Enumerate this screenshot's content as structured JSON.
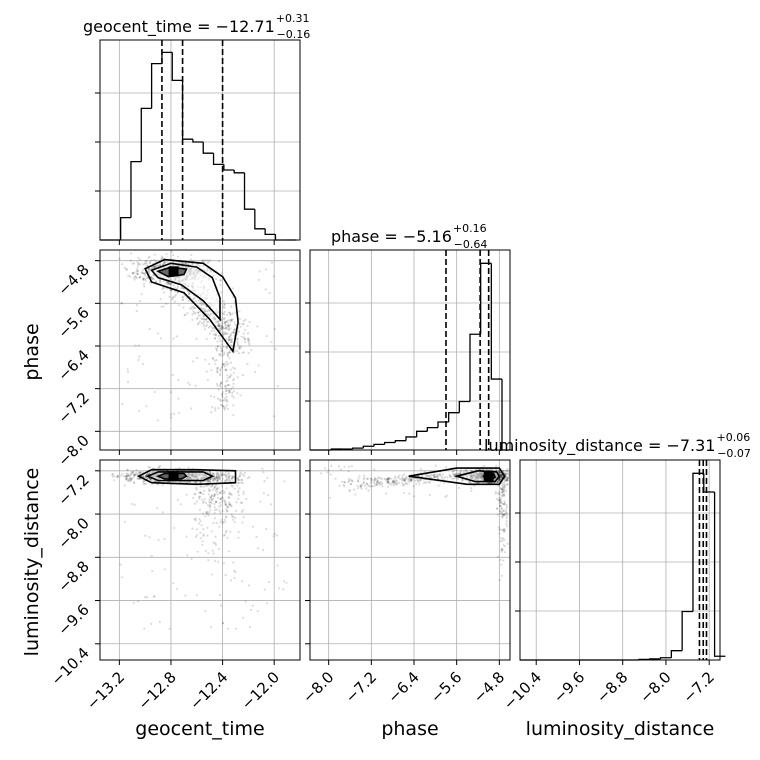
{
  "chart_data": {
    "type": "corner",
    "parameters": [
      "geocent_time",
      "phase",
      "luminosity_distance"
    ],
    "titles": [
      {
        "param": "geocent_time",
        "label": "geocent_time",
        "median": "−12.71",
        "plus": "+0.31",
        "minus": "−0.16"
      },
      {
        "param": "phase",
        "label": "phase",
        "median": "−5.16",
        "plus": "+0.16",
        "minus": "−0.64"
      },
      {
        "param": "luminosity_distance",
        "label": "luminosity_distance",
        "median": "−7.31",
        "plus": "+0.06",
        "minus": "−0.07"
      }
    ],
    "axes": {
      "geocent_time": {
        "range": [
          -13.35,
          -11.8
        ],
        "ticks": [
          -13.2,
          -12.8,
          -12.4,
          -12.0
        ],
        "tick_labels": [
          "−13.2",
          "−12.8",
          "−12.4",
          "−12.0"
        ],
        "quantiles": [
          -12.87,
          -12.71,
          -12.4
        ]
      },
      "phase": {
        "range": [
          -8.35,
          -4.6
        ],
        "ticks": [
          -8.0,
          -7.2,
          -6.4,
          -5.6,
          -4.8
        ],
        "tick_labels": [
          "−8.0",
          "−7.2",
          "−6.4",
          "−5.6",
          "−4.8"
        ],
        "quantiles": [
          -5.8,
          -5.16,
          -5.0
        ]
      },
      "luminosity_distance": {
        "range": [
          -10.7,
          -7.0
        ],
        "ticks": [
          -10.4,
          -9.6,
          -8.8,
          -8.0,
          -7.2
        ],
        "tick_labels": [
          "−10.4",
          "−9.6",
          "−8.8",
          "−8.0",
          "−7.2"
        ],
        "quantiles": [
          -7.38,
          -7.31,
          -7.25
        ]
      }
    },
    "histograms": [
      {
        "param": "geocent_time",
        "edges": [
          -13.35,
          -13.27,
          -13.19,
          -13.11,
          -13.03,
          -12.95,
          -12.87,
          -12.79,
          -12.71,
          -12.63,
          -12.55,
          -12.47,
          -12.39,
          -12.31,
          -12.23,
          -12.15,
          -12.07,
          -11.99,
          -11.91,
          -11.83
        ],
        "counts": [
          0,
          0,
          8,
          28,
          47,
          63,
          67,
          57,
          36,
          35,
          31,
          27,
          25,
          24,
          11,
          4,
          2,
          0,
          0
        ],
        "ymax": 70
      },
      {
        "param": "phase",
        "edges": [
          -8.35,
          -8.15,
          -7.95,
          -7.75,
          -7.55,
          -7.35,
          -7.15,
          -6.95,
          -6.75,
          -6.55,
          -6.35,
          -6.15,
          -5.95,
          -5.75,
          -5.55,
          -5.35,
          -5.15,
          -4.95,
          -4.75,
          -4.55
        ],
        "counts": [
          0,
          0,
          0.5,
          0.5,
          1,
          2,
          3,
          4,
          5,
          7,
          10,
          12,
          15,
          20,
          26,
          62,
          100,
          38,
          0
        ],
        "ymax": 105
      },
      {
        "param": "luminosity_distance",
        "edges": [
          -10.7,
          -10.5,
          -10.3,
          -10.1,
          -9.9,
          -9.7,
          -9.5,
          -9.3,
          -9.1,
          -8.9,
          -8.7,
          -8.5,
          -8.3,
          -8.1,
          -7.9,
          -7.7,
          -7.5,
          -7.3,
          -7.1,
          -6.9
        ],
        "counts": [
          0,
          0,
          0,
          0,
          0,
          0,
          0,
          0,
          0,
          0,
          0,
          0.3,
          0.6,
          1.2,
          5,
          26,
          100,
          90,
          2
        ],
        "ymax": 105
      }
    ],
    "grid": true,
    "scatter": {
      "phase_vs_geocent_time": {
        "peak": [
          -12.78,
          -5.0
        ]
      },
      "luminosity_distance_vs_geocent_time": {
        "peak": [
          -12.78,
          -7.3
        ]
      },
      "luminosity_distance_vs_phase": {
        "peak": [
          -5.0,
          -7.3
        ]
      }
    }
  }
}
